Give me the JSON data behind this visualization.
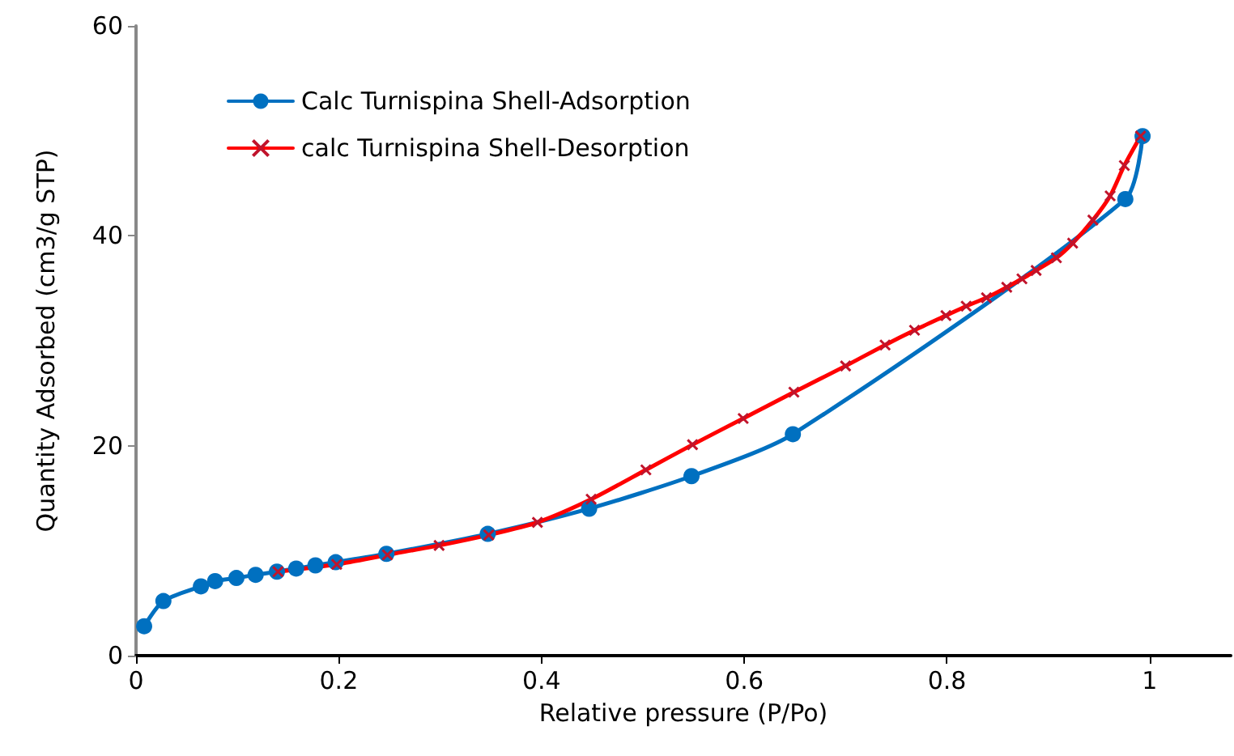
{
  "chart_data": {
    "type": "line",
    "xlabel": "Relative pressure (P/Po)",
    "ylabel": "Quantity Adsorbed (cm3/g STP)",
    "xlim": [
      0,
      1.08
    ],
    "xticks": [
      0,
      0.2,
      0.4,
      0.6,
      0.8,
      1
    ],
    "ylim": [
      0,
      60
    ],
    "yticks": [
      0,
      20,
      40,
      60
    ],
    "grid": false,
    "legend": "top left",
    "line_style": "solid",
    "series": [
      {
        "name": "Calc Turnispina Shell-Adsorption",
        "color": "#0070c0",
        "marker": "circle",
        "x": [
          0.008,
          0.027,
          0.064,
          0.078,
          0.099,
          0.118,
          0.139,
          0.158,
          0.177,
          0.197,
          0.247,
          0.347,
          0.447,
          0.548,
          0.648,
          0.976,
          0.993
        ],
        "values": [
          2.8,
          5.2,
          6.6,
          7.1,
          7.4,
          7.7,
          8.0,
          8.3,
          8.6,
          8.9,
          9.7,
          11.6,
          14.0,
          17.1,
          21.1,
          43.5,
          49.5
        ]
      },
      {
        "name": "calc Turnispina Shell-Desorption",
        "color": "#ff0000",
        "marker": "cross",
        "x": [
          0.991,
          0.975,
          0.961,
          0.944,
          0.924,
          0.908,
          0.888,
          0.874,
          0.859,
          0.839,
          0.819,
          0.799,
          0.768,
          0.739,
          0.7,
          0.649,
          0.599,
          0.549,
          0.503,
          0.449,
          0.396,
          0.348,
          0.299,
          0.248,
          0.198,
          0.14
        ],
        "values": [
          49.5,
          46.7,
          43.8,
          41.5,
          39.3,
          37.9,
          36.7,
          35.9,
          35.1,
          34.1,
          33.3,
          32.4,
          31.0,
          29.6,
          27.6,
          25.1,
          22.6,
          20.1,
          17.7,
          14.9,
          12.7,
          11.5,
          10.5,
          9.6,
          8.7,
          8.0
        ]
      }
    ]
  }
}
